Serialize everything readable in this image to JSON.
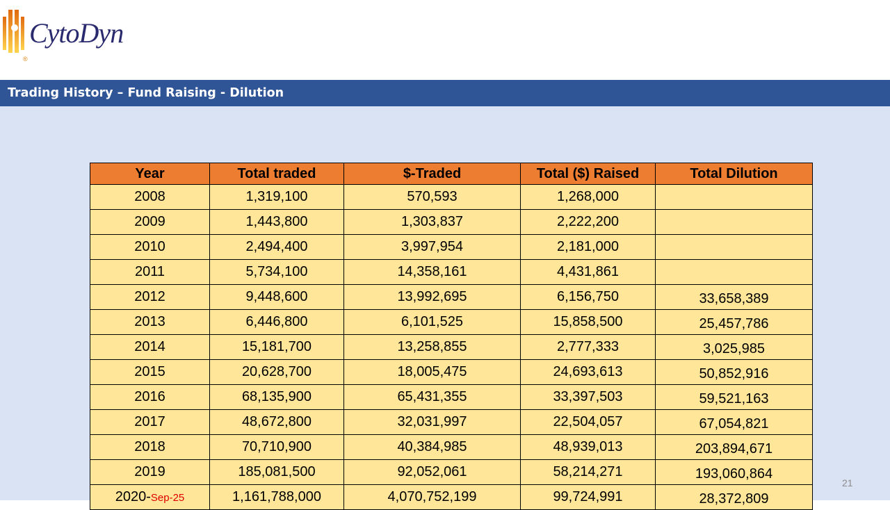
{
  "brand": {
    "name": "CytoDyn",
    "registered": "®"
  },
  "slide_title": "Trading History – Fund Raising - Dilution",
  "table": {
    "headers": [
      "Year",
      "Total traded",
      "$-Traded",
      "Total ($) Raised",
      "Total Dilution"
    ],
    "rows": [
      {
        "year": "2008",
        "suffix": "",
        "total_traded": "1,319,100",
        "dollar_traded": "570,593",
        "raised": "1,268,000",
        "dilution": ""
      },
      {
        "year": "2009",
        "suffix": "",
        "total_traded": "1,443,800",
        "dollar_traded": "1,303,837",
        "raised": "2,222,200",
        "dilution": ""
      },
      {
        "year": "2010",
        "suffix": "",
        "total_traded": "2,494,400",
        "dollar_traded": "3,997,954",
        "raised": "2,181,000",
        "dilution": ""
      },
      {
        "year": "2011",
        "suffix": "",
        "total_traded": "5,734,100",
        "dollar_traded": "14,358,161",
        "raised": "4,431,861",
        "dilution": ""
      },
      {
        "year": "2012",
        "suffix": "",
        "total_traded": "9,448,600",
        "dollar_traded": "13,992,695",
        "raised": "6,156,750",
        "dilution": "33,658,389"
      },
      {
        "year": "2013",
        "suffix": "",
        "total_traded": "6,446,800",
        "dollar_traded": "6,101,525",
        "raised": "15,858,500",
        "dilution": "25,457,786"
      },
      {
        "year": "2014",
        "suffix": "",
        "total_traded": "15,181,700",
        "dollar_traded": "13,258,855",
        "raised": "2,777,333",
        "dilution": "3,025,985"
      },
      {
        "year": "2015",
        "suffix": "",
        "total_traded": "20,628,700",
        "dollar_traded": "18,005,475",
        "raised": "24,693,613",
        "dilution": "50,852,916"
      },
      {
        "year": "2016",
        "suffix": "",
        "total_traded": "68,135,900",
        "dollar_traded": "65,431,355",
        "raised": "33,397,503",
        "dilution": "59,521,163"
      },
      {
        "year": "2017",
        "suffix": "",
        "total_traded": "48,672,800",
        "dollar_traded": "32,031,997",
        "raised": "22,504,057",
        "dilution": "67,054,821"
      },
      {
        "year": "2018",
        "suffix": "",
        "total_traded": "70,710,900",
        "dollar_traded": "40,384,985",
        "raised": "48,939,013",
        "dilution": "203,894,671"
      },
      {
        "year": "2019",
        "suffix": "",
        "total_traded": "185,081,500",
        "dollar_traded": "92,052,061",
        "raised": "58,214,271",
        "dilution": "193,060,864"
      },
      {
        "year": "2020-",
        "suffix": "Sep-25",
        "total_traded": "1,161,788,000",
        "dollar_traded": "4,070,752,199",
        "raised": "99,724,991",
        "dilution": "28,372,809"
      }
    ]
  },
  "page_number": "21",
  "colors": {
    "title_bar": "#2f5597",
    "header": "#ed7d31",
    "cell": "#ffe699",
    "background": "#dae3f3",
    "suffix": "#e00000"
  }
}
